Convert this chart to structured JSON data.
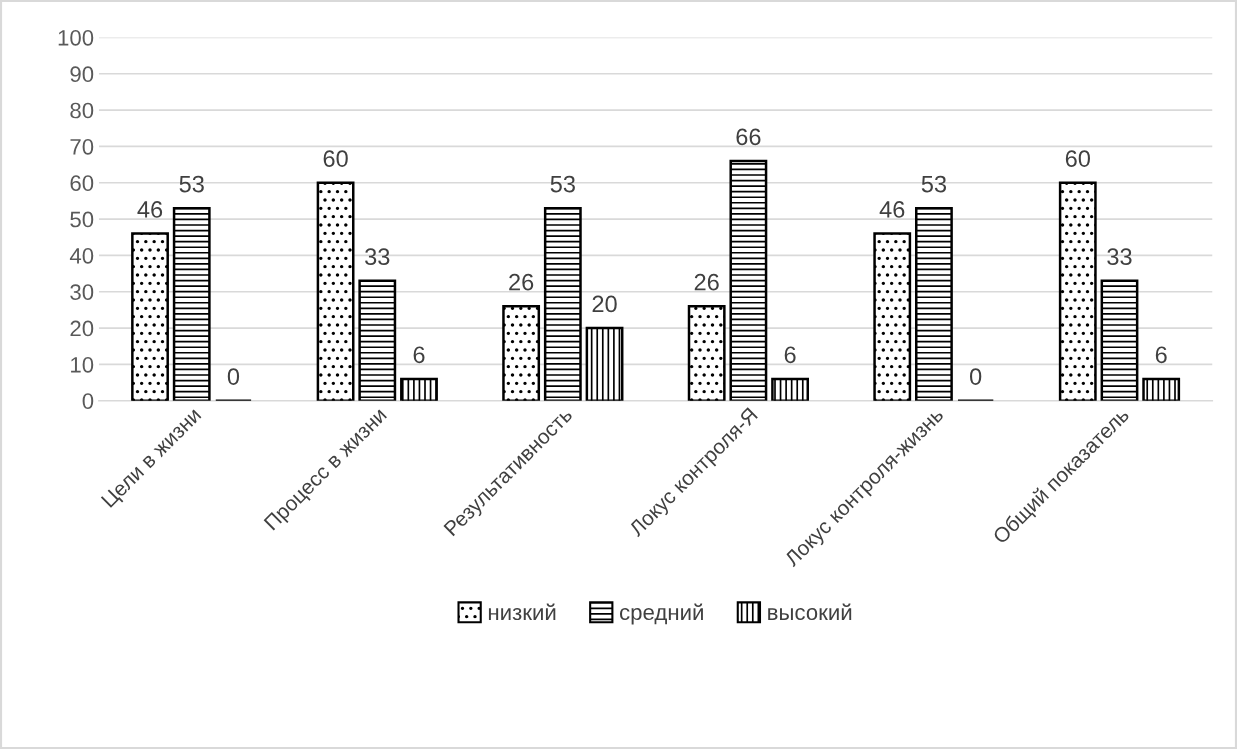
{
  "chart_data": {
    "type": "bar",
    "categories": [
      "Цели в жизни",
      "Процесс в жизни",
      "Результативность",
      "Локус контроля-Я",
      "Локус контроля-жизнь",
      "Общий показатель"
    ],
    "series": [
      {
        "name": "низкий",
        "color": "#000000",
        "values": [
          46,
          60,
          26,
          26,
          46,
          60
        ]
      },
      {
        "name": "средний",
        "color": "#000000",
        "values": [
          53,
          33,
          53,
          66,
          53,
          33
        ]
      },
      {
        "name": "высокий",
        "color": "#000000",
        "values": [
          0,
          6,
          20,
          6,
          0,
          6
        ]
      }
    ],
    "ylim": [
      0,
      100
    ],
    "yticks": [
      0,
      10,
      20,
      30,
      40,
      50,
      60,
      70,
      80,
      90,
      100
    ],
    "grid": "y",
    "legend": "bottom",
    "data_labels": true
  }
}
